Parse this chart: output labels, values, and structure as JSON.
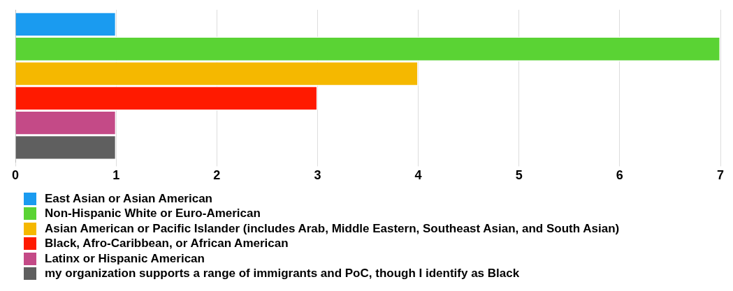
{
  "chart_data": {
    "type": "bar",
    "orientation": "horizontal",
    "categories": [
      null
    ],
    "series": [
      {
        "name": "East Asian or Asian American",
        "color": "#1a9bf0",
        "values": [
          1
        ]
      },
      {
        "name": "Non-Hispanic White or Euro-American",
        "color": "#5ad334",
        "values": [
          7
        ]
      },
      {
        "name": "Asian American or Pacific Islander (includes Arab, Middle Eastern, Southeast Asian, and South Asian)",
        "color": "#f5b800",
        "values": [
          4
        ]
      },
      {
        "name": "Black, Afro-Caribbean, or African American",
        "color": "#ff1a00",
        "values": [
          3
        ]
      },
      {
        "name": "Latinx or Hispanic American",
        "color": "#c44a87",
        "values": [
          1
        ]
      },
      {
        "name": "my organization supports a range of immigrants and PoC, though I identify as Black",
        "color": "#5f5f5f",
        "values": [
          1
        ]
      }
    ],
    "xlim": [
      0,
      7
    ],
    "xticks": [
      0,
      1,
      2,
      3,
      4,
      5,
      6,
      7
    ],
    "grid": "x",
    "legend": "bottom",
    "tick_labels": "x"
  }
}
